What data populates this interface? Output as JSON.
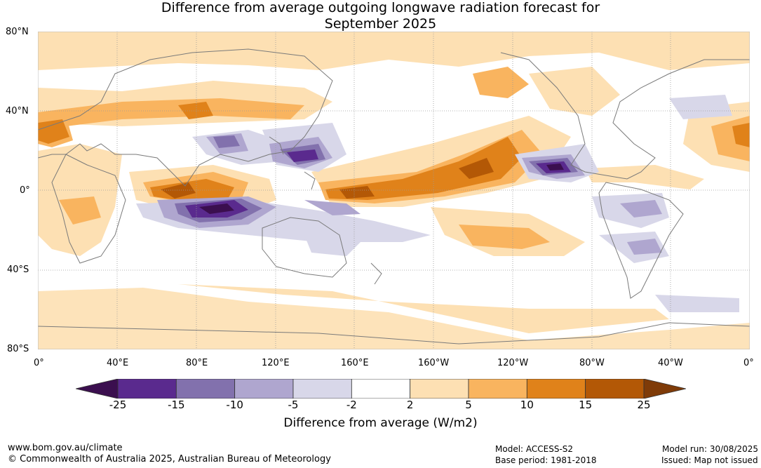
{
  "title_line1": "Difference from average outgoing longwave radiation forecast for",
  "title_line2": "September 2025",
  "lat_labels": [
    "80°N",
    "40°N",
    "0°",
    "40°S",
    "80°S"
  ],
  "lon_labels": [
    "0°",
    "40°E",
    "80°E",
    "120°E",
    "160°E",
    "160°W",
    "120°W",
    "80°W",
    "40°W",
    "0°"
  ],
  "colorbar": {
    "ticks": [
      "-25",
      "-15",
      "-10",
      "-5",
      "-2",
      "2",
      "5",
      "10",
      "15",
      "25"
    ],
    "colors": [
      "#3b0f4f",
      "#5a2a8e",
      "#8271ad",
      "#afa6cf",
      "#d8d7e9",
      "#ffffff",
      "#fde0b3",
      "#f9b45f",
      "#e0821a",
      "#b35806",
      "#7f3b08"
    ],
    "label": "Difference from average (W/m2)"
  },
  "footer": {
    "url": "www.bom.gov.au/climate",
    "copyright": "© Commonwealth of Australia 2025, Australian Bureau of Meteorology",
    "model": "Model: ACCESS-S2",
    "base_period": "Base period: 1981-2018",
    "model_run": "Model run: 30/08/2025",
    "issued": "Issued: Map not issued"
  }
}
